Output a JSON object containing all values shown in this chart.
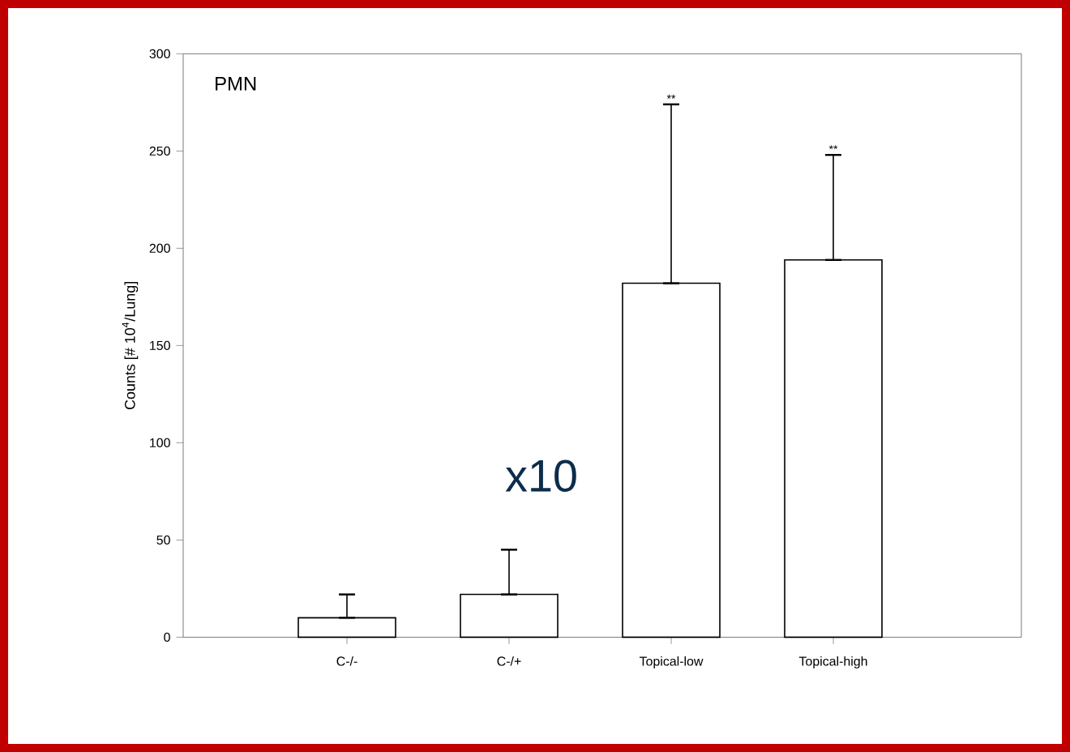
{
  "chart_data": {
    "type": "bar",
    "title": "PMN",
    "ylabel": "Counts [# 10$^{4}$/Lung]",
    "categories": [
      "C-/-",
      "C-/+",
      "Topical-low",
      "Topical-high"
    ],
    "series": [
      {
        "color": "#000000",
        "values": [
          10,
          22,
          182,
          194
        ],
        "errors": [
          [
            10,
            22
          ],
          [
            22,
            45
          ],
          [
            182,
            274
          ],
          [
            194,
            248
          ]
        ]
      }
    ],
    "ylim": [
      0,
      300
    ],
    "yticks": [
      0,
      50,
      100,
      150,
      200,
      250,
      300
    ],
    "annotations": [
      "x10",
      {
        "text": "**",
        "x": "Topical-low",
        "y": 274
      },
      {
        "text": "**",
        "x": "Topical-high",
        "y": 248
      }
    ]
  }
}
